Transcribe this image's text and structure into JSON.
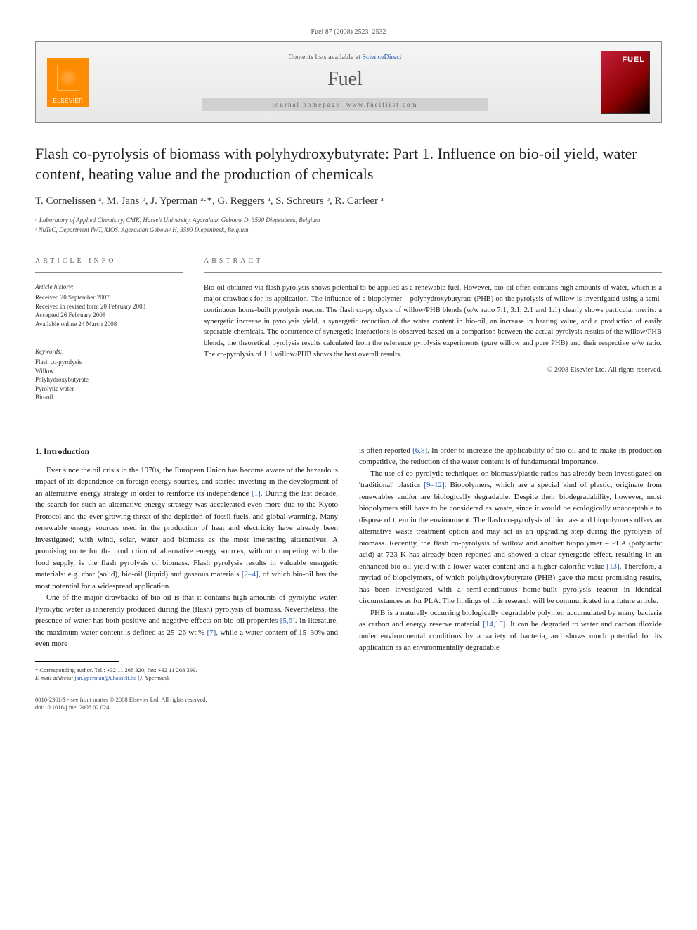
{
  "header": {
    "citation": "Fuel 87 (2008) 2523–2532",
    "contents_prefix": "Contents lists available at ",
    "contents_link": "ScienceDirect",
    "journal_name": "Fuel",
    "homepage_label": "journal homepage: www.fuelfirst.com",
    "publisher_logo_text": "ELSEVIER"
  },
  "article": {
    "title": "Flash co-pyrolysis of biomass with polyhydroxybutyrate: Part 1. Influence on bio-oil yield, water content, heating value and the production of chemicals",
    "authors_html": "T. Cornelissen ᵃ, M. Jans ᵇ, J. Yperman ᵃ·*, G. Reggers ᵃ, S. Schreurs ᵇ, R. Carleer ᵃ",
    "affiliations": [
      "ᵃ Laboratory of Applied Chemistry, CMK, Hasselt University, Agoralaan Gebouw D, 3590 Diepenbeek, Belgium",
      "ᵇ NuTeC, Department IWT, XIOS, Agoralaan Gebouw H, 3590 Diepenbeek, Belgium"
    ]
  },
  "info": {
    "heading": "ARTICLE INFO",
    "history_label": "Article history:",
    "history": [
      "Received 20 September 2007",
      "Received in revised form 20 February 2008",
      "Accepted 26 February 2008",
      "Available online 24 March 2008"
    ],
    "keywords_label": "Keywords:",
    "keywords": [
      "Flash co-pyrolysis",
      "Willow",
      "Polyhydroxybutyrate",
      "Pyrolytic water",
      "Bio-oil"
    ]
  },
  "abstract": {
    "heading": "ABSTRACT",
    "text": "Bio-oil obtained via flash pyrolysis shows potential to be applied as a renewable fuel. However, bio-oil often contains high amounts of water, which is a major drawback for its application. The influence of a biopolymer – polyhydroxybutyrate (PHB) on the pyrolysis of willow is investigated using a semi-continuous home-built pyrolysis reactor. The flash co-pyrolysis of willow/PHB blends (w/w ratio 7:1, 3:1, 2:1 and 1:1) clearly shows particular merits: a synergetic increase in pyrolysis yield, a synergetic reduction of the water content in bio-oil, an increase in heating value, and a production of easily separable chemicals. The occurrence of synergetic interactions is observed based on a comparison between the actual pyrolysis results of the willow/PHB blends, the theoretical pyrolysis results calculated from the reference pyrolysis experiments (pure willow and pure PHB) and their respective w/w ratio. The co-pyrolysis of 1:1 willow/PHB shows the best overall results.",
    "copyright": "© 2008 Elsevier Ltd. All rights reserved."
  },
  "body": {
    "section_number": "1.",
    "section_title": "Introduction",
    "col1": {
      "p1": "Ever since the oil crisis in the 1970s, the European Union has become aware of the hazardous impact of its dependence on foreign energy sources, and started investing in the development of an alternative energy strategy in order to reinforce its independence [1]. During the last decade, the search for such an alternative energy strategy was accelerated even more due to the Kyoto Protocol and the ever growing threat of the depletion of fossil fuels, and global warming. Many renewable energy sources used in the production of heat and electricity have already been investigated; with wind, solar, water and biomass as the most interesting alternatives. A promising route for the production of alternative energy sources, without competing with the food supply, is the flash pyrolysis of biomass. Flash pyrolysis results in valuable energetic materials: e.g. char (solid), bio-oil (liquid) and gaseous materials [2–4], of which bio-oil has the most potential for a widespread application.",
      "p2": "One of the major drawbacks of bio-oil is that it contains high amounts of pyrolytic water. Pyrolytic water is inherently produced during the (flash) pyrolysis of biomass. Nevertheless, the presence of water has both positive and negative effects on bio-oil properties [5,6]. In literature, the maximum water content is defined as 25–26 wt.% [7], while a water content of 15–30% and even more"
    },
    "col2": {
      "p1": "is often reported [6,8]. In order to increase the applicability of bio-oil and to make its production competitive, the reduction of the water content is of fundamental importance.",
      "p2": "The use of co-pyrolytic techniques on biomass/plastic ratios has already been investigated on 'traditional' plastics [9–12]. Biopolymers, which are a special kind of plastic, originate from renewables and/or are biologically degradable. Despite their biodegradability, however, most biopolymers still have to be considered as waste, since it would be ecologically unacceptable to dispose of them in the environment. The flash co-pyrolysis of biomass and biopolymers offers an alternative waste treatment option and may act as an upgrading step during the pyrolysis of biomass. Recently, the flash co-pyrolysis of willow and another biopolymer – PLA (polylactic acid) at 723 K has already been reported and showed a clear synergetic effect, resulting in an enhanced bio-oil yield with a lower water content and a higher calorific value [13]. Therefore, a myriad of biopolymers, of which polyhydroxybutyrate (PHB) gave the most promising results, has been investigated with a semi-continuous home-built pyrolysis reactor in identical circumstances as for PLA. The findings of this research will be communicated in a future article.",
      "p3": "PHB is a naturally occurring biologically degradable polymer, accumulated by many bacteria as carbon and energy reserve material [14,15]. It can be degraded to water and carbon dioxide under environmental conditions by a variety of bacteria, and shows much potential for its application as an environmentally degradable"
    }
  },
  "footnote": {
    "corr_label": "* Corresponding author. Tel.: +32 11 268 320; fax: +32 11 268 399.",
    "email_label": "E-mail address:",
    "email": "jan.yperman@uhasselt.be",
    "email_suffix": "(J. Yperman)."
  },
  "footer": {
    "line1": "0016-2361/$ - see front matter © 2008 Elsevier Ltd. All rights reserved.",
    "line2": "doi:10.1016/j.fuel.2008.02.024"
  },
  "refs": {
    "r1": "[1]",
    "r2_4": "[2–4]",
    "r5_6": "[5,6]",
    "r7": "[7]",
    "r6_8": "[6,8]",
    "r9_12": "[9–12]",
    "r13": "[13]",
    "r14_15": "[14,15]"
  },
  "colors": {
    "link": "#2a5db0",
    "text": "#1a1a1a",
    "rule": "#888888",
    "elsevier_orange": "#ff8c00",
    "cover_red": "#c41e3a"
  }
}
